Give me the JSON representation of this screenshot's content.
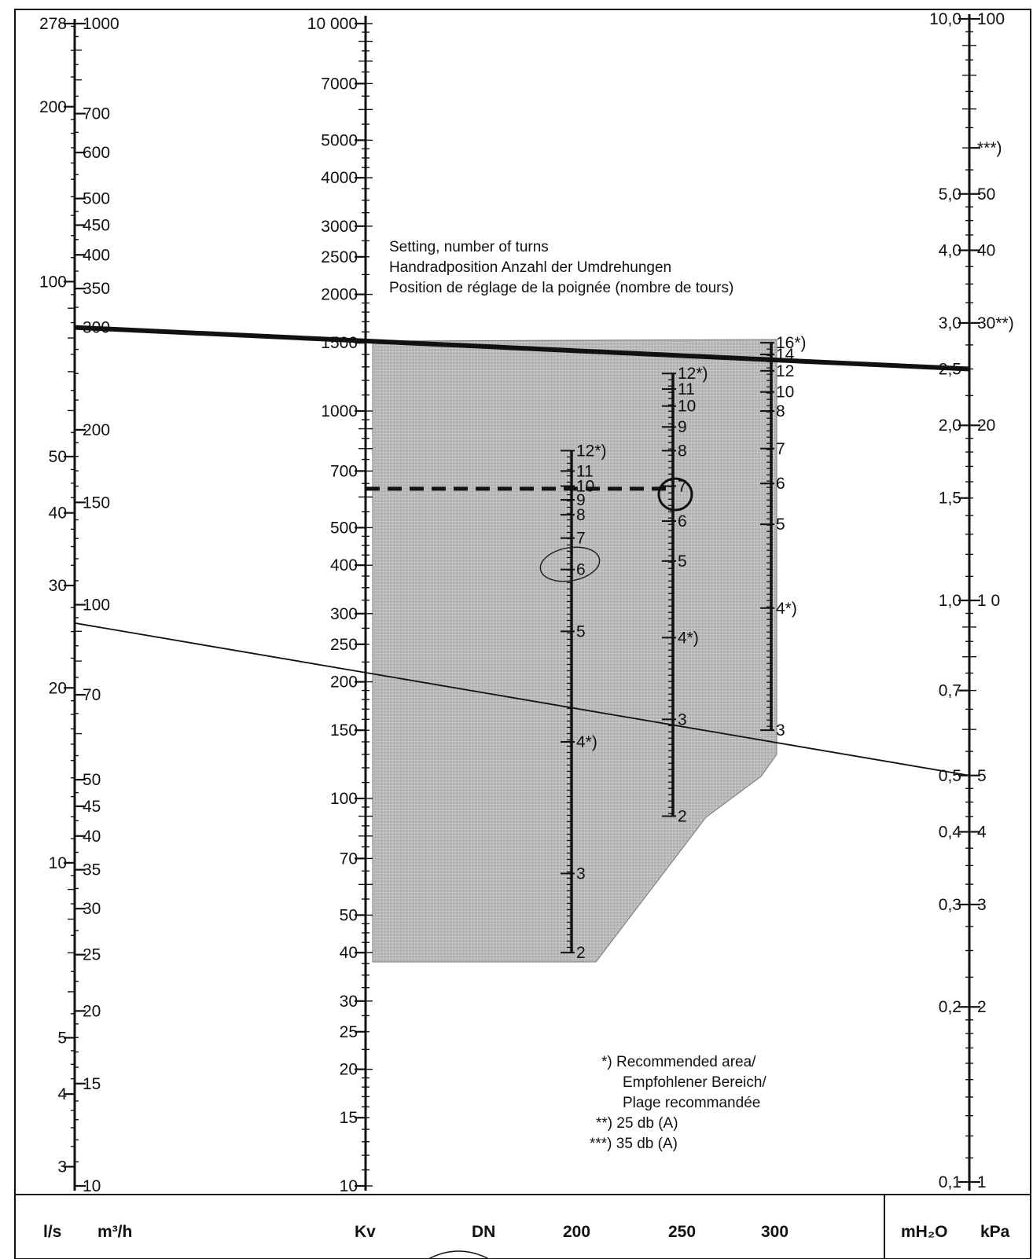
{
  "chart_data": {
    "type": "nomogram",
    "note_text": {
      "setting": [
        "Setting, number of turns",
        "Handradposition Anzahl der Umdrehungen",
        "Position de réglage de la poignée (nombre de tours)"
      ],
      "legend": [
        "*)  Recommended area/",
        "Empfohlener Bereich/",
        "Plage recommandée",
        "**) 25 db (A)",
        "***) 35 db (A)"
      ]
    },
    "bottom_labels": [
      "l/s",
      "m³/h",
      "Kv",
      "DN",
      "200",
      "250",
      "300",
      "mH₂O",
      "kPa"
    ],
    "axes": {
      "ls": {
        "unit": "l/s",
        "range": [
          2.78,
          278
        ],
        "log": true,
        "labels": [
          "278",
          "200",
          "100",
          "50",
          "40",
          "30",
          "20",
          "10",
          "5",
          "4",
          "3"
        ]
      },
      "m3h": {
        "unit": "m³/h",
        "range": [
          10,
          1000
        ],
        "log": true,
        "labels": [
          "1000",
          "700",
          "600",
          "500",
          "450",
          "400",
          "350",
          "300",
          "200",
          "150",
          "100",
          "70",
          "50",
          "45",
          "40",
          "35",
          "30",
          "25",
          "20",
          "15",
          "10"
        ]
      },
      "kv": {
        "unit": "Kv",
        "range": [
          10,
          10000
        ],
        "log": true,
        "labels": [
          "10 000",
          "7000",
          "5000",
          "4000",
          "3000",
          "2500",
          "2000",
          "1500",
          "1000",
          "700",
          "500",
          "400",
          "300",
          "250",
          "200",
          "150",
          "100",
          "70",
          "50",
          "40",
          "30",
          "25",
          "20",
          "15",
          "10"
        ]
      },
      "mh2o": {
        "unit": "mH₂O",
        "range": [
          0.1,
          10
        ],
        "log": true,
        "labels": [
          "0,1",
          "0,2",
          "0,3",
          "0,4",
          "0,5",
          "0,7",
          "1,0",
          "1,5",
          "2,0",
          "2,5",
          "3,0",
          "4,0",
          "5,0",
          "10,0"
        ]
      },
      "kpa": {
        "unit": "kPa",
        "range": [
          1,
          100
        ],
        "log": true,
        "labels": [
          "1",
          "2",
          "3",
          "4",
          "5",
          "1 0",
          "20",
          "30**)",
          "40",
          "50",
          "***)",
          "100"
        ]
      }
    },
    "dn_scales": [
      {
        "dn": "200",
        "turns": [
          "12*)",
          "11",
          "10",
          "9",
          "8",
          "7",
          "6",
          "5",
          "4*)",
          "3",
          "2"
        ],
        "kv_at_turns": [
          790,
          700,
          640,
          590,
          540,
          470,
          390,
          270,
          140,
          64,
          40
        ]
      },
      {
        "dn": "250",
        "turns": [
          "12*)",
          "11",
          "10",
          "9",
          "8",
          "7",
          "6",
          "5",
          "4*)",
          "3",
          "2"
        ],
        "kv_at_turns": [
          1250,
          1140,
          1030,
          910,
          790,
          640,
          520,
          410,
          260,
          160,
          90
        ]
      },
      {
        "dn": "300",
        "turns": [
          "16*)",
          "14",
          "12",
          "10",
          "8",
          "7",
          "6",
          "5",
          "4*)",
          "3"
        ],
        "kv_at_turns": [
          1500,
          1400,
          1270,
          1120,
          1000,
          800,
          650,
          510,
          310,
          150
        ]
      }
    ],
    "example_lines": [
      {
        "style": "thick",
        "from": {
          "axis": "m3h",
          "value": 300
        },
        "to": {
          "axis": "mh2o",
          "value": 2.5
        }
      },
      {
        "style": "thin",
        "from": {
          "axis": "m3h",
          "value": 93
        },
        "to": {
          "axis": "mh2o",
          "value": 0.5
        }
      },
      {
        "style": "dashed",
        "kv": 630,
        "from": "Kv",
        "to": "DN 250 setting 7"
      }
    ],
    "recommended_area": "shaded"
  }
}
